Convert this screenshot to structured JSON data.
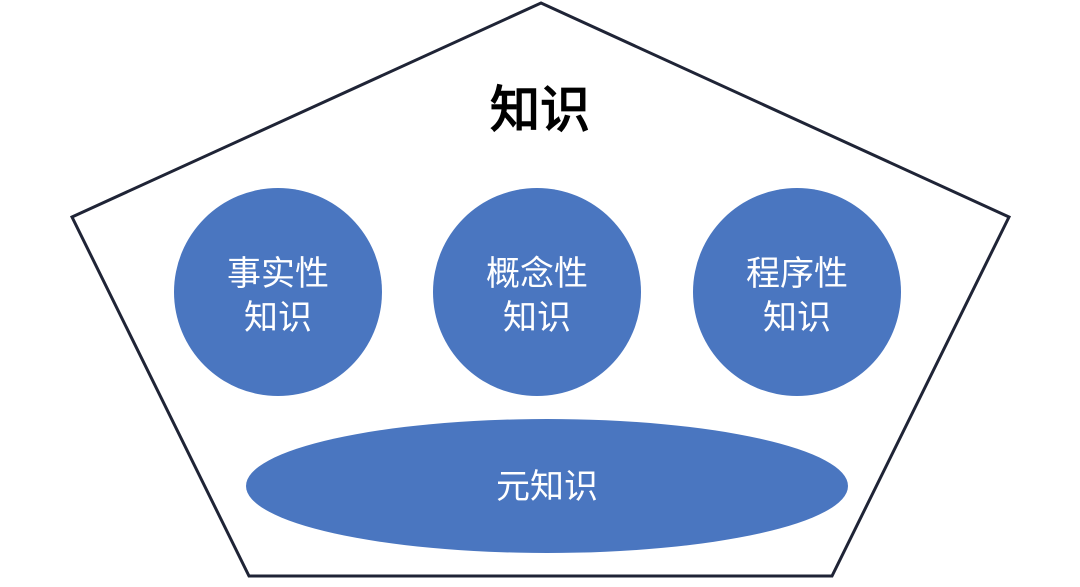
{
  "diagram": {
    "title": "知识",
    "categories": [
      {
        "line1": "事实性",
        "line2": "知识"
      },
      {
        "line1": "概念性",
        "line2": "知识"
      },
      {
        "line1": "程序性",
        "line2": "知识"
      }
    ],
    "base": {
      "label": "元知识"
    }
  },
  "colors": {
    "shape_fill": "#4a76c0",
    "label_text": "#ffffff",
    "title_text": "#000000",
    "outline": "#1f2436",
    "background": "#ffffff"
  }
}
